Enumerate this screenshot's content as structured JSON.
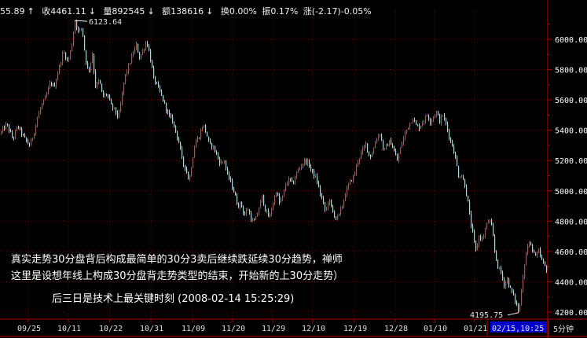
{
  "header": {
    "items": [
      {
        "text": "55.89",
        "arrow": "↑"
      },
      {
        "text": "收4461.11",
        "arrow": "↓"
      },
      {
        "text": "量892545",
        "arrow": "↓"
      },
      {
        "text": "额138616",
        "arrow": "↓"
      },
      {
        "text": "换0.00%",
        "arrow": ""
      },
      {
        "text": "振0.17%",
        "arrow": ""
      },
      {
        "text": "涨(-2.17)-0.05%",
        "arrow": ""
      }
    ]
  },
  "annotations": {
    "line1": "真实走势30分盘背后构成最简单的30分3卖后继续跌延续30分趋势，禅师",
    "line2": "这里是设想年线上构成30分盘背走势类型的结束，开始新的上30分走势）",
    "line3": "后三日是技术上最关键时刻  (2008-02-14 15:25:29)"
  },
  "chart_data": {
    "type": "candlestick",
    "ylim": [
      4100,
      6300
    ],
    "y_ticks": [
      4200,
      4400,
      4600,
      4800,
      5000,
      5200,
      5400,
      5600,
      5800,
      6000
    ],
    "x_ticks": [
      "09/25",
      "10/11",
      "10/22",
      "10/31",
      "11/09",
      "11/20",
      "11/29",
      "12/10",
      "12/19",
      "12/28",
      "01/10",
      "01/21"
    ],
    "x_highlight": "02/15,10:25",
    "period_label": "5分钟",
    "high_annotation": {
      "label": "6123.64",
      "value": 6123.64
    },
    "low_annotation": {
      "label": "4195.75",
      "value": 4195.75
    },
    "colors": {
      "up": "#ff3232",
      "down": "#54ffff",
      "grid": "#7f0000",
      "axis": "#b00000"
    },
    "path": [
      [
        0,
        5380
      ],
      [
        8,
        5440
      ],
      [
        16,
        5340
      ],
      [
        22,
        5430
      ],
      [
        30,
        5350
      ],
      [
        37,
        5300
      ],
      [
        42,
        5370
      ],
      [
        47,
        5480
      ],
      [
        52,
        5560
      ],
      [
        58,
        5620
      ],
      [
        64,
        5720
      ],
      [
        68,
        5680
      ],
      [
        74,
        5800
      ],
      [
        80,
        5920
      ],
      [
        86,
        5850
      ],
      [
        91,
        5970
      ],
      [
        95,
        6123.64
      ],
      [
        99,
        6050
      ],
      [
        104,
        6080
      ],
      [
        108,
        5880
      ],
      [
        112,
        5780
      ],
      [
        117,
        5900
      ],
      [
        121,
        5690
      ],
      [
        126,
        5730
      ],
      [
        130,
        5620
      ],
      [
        136,
        5640
      ],
      [
        141,
        5560
      ],
      [
        146,
        5530
      ],
      [
        150,
        5480
      ],
      [
        154,
        5600
      ],
      [
        158,
        5750
      ],
      [
        163,
        5820
      ],
      [
        168,
        5900
      ],
      [
        173,
        5960
      ],
      [
        177,
        5880
      ],
      [
        181,
        5920
      ],
      [
        186,
        5990
      ],
      [
        190,
        5900
      ],
      [
        195,
        5740
      ],
      [
        199,
        5700
      ],
      [
        204,
        5640
      ],
      [
        209,
        5570
      ],
      [
        214,
        5500
      ],
      [
        219,
        5460
      ],
      [
        224,
        5380
      ],
      [
        228,
        5300
      ],
      [
        232,
        5180
      ],
      [
        236,
        5150
      ],
      [
        240,
        5060
      ],
      [
        244,
        5200
      ],
      [
        248,
        5320
      ],
      [
        253,
        5360
      ],
      [
        258,
        5440
      ],
      [
        262,
        5380
      ],
      [
        266,
        5300
      ],
      [
        270,
        5300
      ],
      [
        275,
        5240
      ],
      [
        280,
        5180
      ],
      [
        285,
        5200
      ],
      [
        289,
        5100
      ],
      [
        293,
        5060
      ],
      [
        298,
        4980
      ],
      [
        302,
        4900
      ],
      [
        306,
        4920
      ],
      [
        310,
        4840
      ],
      [
        315,
        4880
      ],
      [
        320,
        4800
      ],
      [
        324,
        4800
      ],
      [
        328,
        4870
      ],
      [
        333,
        4960
      ],
      [
        337,
        4880
      ],
      [
        342,
        4820
      ],
      [
        346,
        4900
      ],
      [
        351,
        5000
      ],
      [
        355,
        4920
      ],
      [
        359,
        4960
      ],
      [
        363,
        5040
      ],
      [
        368,
        5080
      ],
      [
        372,
        5040
      ],
      [
        377,
        5120
      ],
      [
        382,
        5160
      ],
      [
        387,
        5200
      ],
      [
        392,
        5180
      ],
      [
        397,
        5120
      ],
      [
        402,
        5080
      ],
      [
        406,
        5000
      ],
      [
        410,
        4930
      ],
      [
        414,
        4860
      ],
      [
        418,
        4950
      ],
      [
        422,
        4870
      ],
      [
        427,
        4820
      ],
      [
        431,
        4840
      ],
      [
        436,
        4920
      ],
      [
        440,
        5000
      ],
      [
        445,
        5060
      ],
      [
        450,
        5100
      ],
      [
        455,
        5200
      ],
      [
        460,
        5260
      ],
      [
        465,
        5310
      ],
      [
        470,
        5220
      ],
      [
        474,
        5260
      ],
      [
        478,
        5340
      ],
      [
        483,
        5380
      ],
      [
        488,
        5260
      ],
      [
        492,
        5300
      ],
      [
        496,
        5330
      ],
      [
        501,
        5260
      ],
      [
        505,
        5200
      ],
      [
        510,
        5300
      ],
      [
        515,
        5380
      ],
      [
        520,
        5440
      ],
      [
        525,
        5480
      ],
      [
        529,
        5430
      ],
      [
        533,
        5420
      ],
      [
        538,
        5460
      ],
      [
        543,
        5500
      ],
      [
        547,
        5460
      ],
      [
        551,
        5490
      ],
      [
        555,
        5520
      ],
      [
        559,
        5460
      ],
      [
        563,
        5500
      ],
      [
        567,
        5440
      ],
      [
        571,
        5360
      ],
      [
        575,
        5300
      ],
      [
        579,
        5220
      ],
      [
        583,
        5100
      ],
      [
        587,
        5100
      ],
      [
        591,
        5040
      ],
      [
        595,
        4920
      ],
      [
        598,
        4800
      ],
      [
        601,
        4720
      ],
      [
        605,
        4600
      ],
      [
        609,
        4700
      ],
      [
        613,
        4680
      ],
      [
        618,
        4760
      ],
      [
        622,
        4820
      ],
      [
        626,
        4740
      ],
      [
        629,
        4600
      ],
      [
        633,
        4500
      ],
      [
        637,
        4460
      ],
      [
        641,
        4380
      ],
      [
        645,
        4420
      ],
      [
        648,
        4360
      ],
      [
        652,
        4320
      ],
      [
        656,
        4260
      ],
      [
        660,
        4195.75
      ],
      [
        664,
        4400
      ],
      [
        668,
        4560
      ],
      [
        672,
        4660
      ],
      [
        677,
        4620
      ],
      [
        681,
        4560
      ],
      [
        685,
        4600
      ],
      [
        689,
        4540
      ],
      [
        693,
        4500
      ],
      [
        697,
        4470
      ]
    ]
  }
}
